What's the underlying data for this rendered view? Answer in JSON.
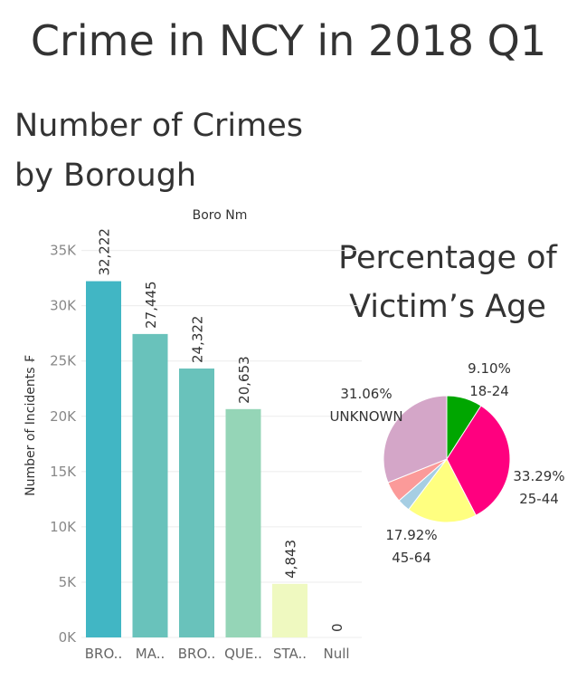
{
  "page": {
    "title": "Crime in NCY in 2018 Q1"
  },
  "chart_data": [
    {
      "type": "bar",
      "title": "Number of Crimes by Borough",
      "subtitle": "Boro Nm",
      "xlabel": "",
      "ylabel": "Number of Incidents ₣",
      "categories": [
        "BRO..",
        "MA..",
        "BRO..",
        "QUE..",
        "STA..",
        "Null"
      ],
      "values": [
        32222,
        27445,
        24322,
        20653,
        4843,
        0
      ],
      "value_labels": [
        "32,222",
        "27,445",
        "24,322",
        "20,653",
        "4,843",
        "0"
      ],
      "colors": [
        "#41b6c4",
        "#69c2bb",
        "#69c2bb",
        "#95d5b7",
        "#eff9c0",
        "#eff9c0"
      ],
      "ylim": [
        0,
        38000
      ],
      "yticks": [
        0,
        5000,
        10000,
        15000,
        20000,
        25000,
        30000,
        35000
      ],
      "ytick_labels": [
        "0K",
        "5K",
        "10K",
        "15K",
        "20K",
        "25K",
        "30K",
        "35K"
      ],
      "grid": true,
      "legend": "none"
    },
    {
      "type": "pie",
      "title": "Percentage of Victim’s Age",
      "slices": [
        {
          "label": "18-24",
          "percent_label": "9.10%",
          "value": 9.1,
          "color": "#00a600"
        },
        {
          "label": "25-44",
          "percent_label": "33.29%",
          "value": 33.29,
          "color": "#ff007f"
        },
        {
          "label": "45-64",
          "percent_label": "17.92%",
          "value": 17.92,
          "color": "#ffff80"
        },
        {
          "label": "",
          "percent_label": "",
          "value": 3.3,
          "color": "#a6cee3"
        },
        {
          "label": "",
          "percent_label": "",
          "value": 5.33,
          "color": "#fb9a99"
        },
        {
          "label": "UNKNOWN",
          "percent_label": "31.06%",
          "value": 31.06,
          "color": "#d4a6c8"
        }
      ]
    }
  ]
}
